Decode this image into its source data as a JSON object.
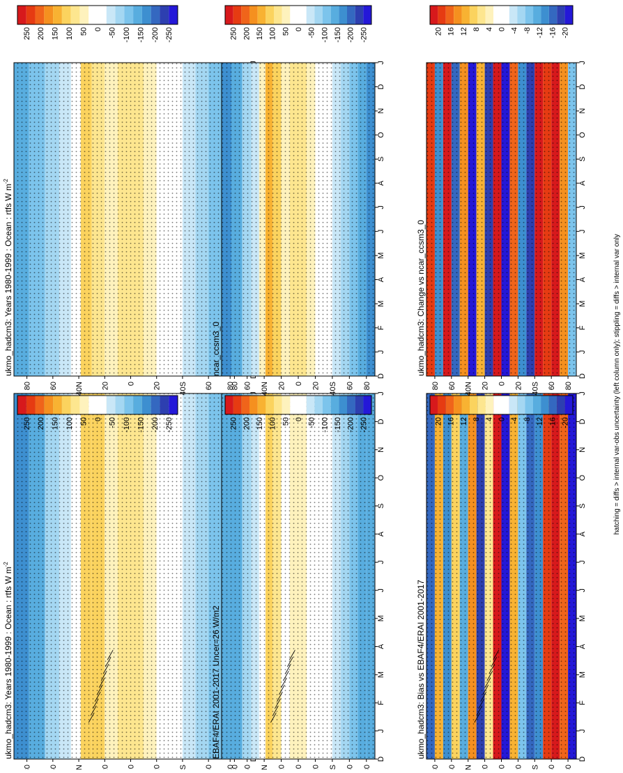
{
  "footnote": "hatching = diffs > internal var-obs uncertainty (left column only); stippling = diffs > internal var only",
  "chart_data": [
    {
      "id": "p1",
      "type": "heatmap",
      "title": "ukmo_hadcm3: Years 1980-1999 : Ocean : rtfs W m",
      "title_sup": "-2",
      "months": [
        "D",
        "J",
        "F",
        "M",
        "A",
        "M",
        "J",
        "J",
        "A",
        "S",
        "O",
        "N",
        "D",
        "J"
      ],
      "lat_ticks": [
        "80",
        "60",
        "40",
        "20",
        "0",
        "20",
        "40",
        "60",
        "80"
      ],
      "lat_hemis": [
        "",
        "",
        "N",
        "",
        "",
        "",
        "S",
        "",
        ""
      ],
      "colorbar": {
        "ticks": [
          "250",
          "200",
          "150",
          "100",
          "50",
          "0",
          "-50",
          "-100",
          "-150",
          "-200",
          "-250"
        ],
        "colors": [
          "#d7191c",
          "#e63b12",
          "#f0641a",
          "#f5901f",
          "#f8b232",
          "#fbd35e",
          "#fde68f",
          "#fef2bd",
          "#ffffff",
          "#ffffff",
          "#c9e7f7",
          "#a4d7f2",
          "#7cc4ec",
          "#58addf",
          "#3d8fd0",
          "#3468c0",
          "#2d3fb0",
          "#2418d8"
        ]
      },
      "bands": [
        {
          "lat": 85,
          "v": -140
        },
        {
          "lat": 72,
          "v": -125
        },
        {
          "lat": 60,
          "v": -70
        },
        {
          "lat": 50,
          "v": -40
        },
        {
          "lat": 42,
          "v": 20
        },
        {
          "lat": 35,
          "v": 110
        },
        {
          "lat": 25,
          "v": 90
        },
        {
          "lat": 15,
          "v": 40
        },
        {
          "lat": 5,
          "v": 70
        },
        {
          "lat": -5,
          "v": 70
        },
        {
          "lat": -15,
          "v": 30
        },
        {
          "lat": -25,
          "v": 0
        },
        {
          "lat": -35,
          "v": -15
        },
        {
          "lat": -45,
          "v": -40
        },
        {
          "lat": -55,
          "v": -75
        },
        {
          "lat": -65,
          "v": -95
        },
        {
          "lat": -75,
          "v": -125
        },
        {
          "lat": -85,
          "v": -135
        }
      ],
      "hatched": true
    },
    {
      "id": "p2",
      "type": "heatmap",
      "title": "ukmo_hadcm3: Years 1980-1999 : Ocean : rtfs W m",
      "title_sup": "-2",
      "months": [
        "D",
        "J",
        "F",
        "M",
        "A",
        "M",
        "J",
        "J",
        "A",
        "S",
        "O",
        "N",
        "D",
        "J"
      ],
      "lat_ticks": [
        "80",
        "60",
        "40",
        "20",
        "0",
        "20",
        "40",
        "60",
        "80"
      ],
      "lat_hemis": [
        "",
        "",
        "N",
        "",
        "",
        "",
        "S",
        "",
        ""
      ],
      "colorbar": {
        "ticks": [
          "250",
          "200",
          "150",
          "100",
          "50",
          "0",
          "-50",
          "-100",
          "-150",
          "-200",
          "-250"
        ],
        "colors": [
          "#d7191c",
          "#e63b12",
          "#f0641a",
          "#f5901f",
          "#f8b232",
          "#fbd35e",
          "#fde68f",
          "#fef2bd",
          "#ffffff",
          "#ffffff",
          "#c9e7f7",
          "#a4d7f2",
          "#7cc4ec",
          "#58addf",
          "#3d8fd0",
          "#3468c0",
          "#2d3fb0",
          "#2418d8"
        ]
      },
      "bands": [
        {
          "lat": 85,
          "v": -130
        },
        {
          "lat": 72,
          "v": -110
        },
        {
          "lat": 60,
          "v": -60
        },
        {
          "lat": 50,
          "v": -30
        },
        {
          "lat": 42,
          "v": 10
        },
        {
          "lat": 35,
          "v": 100
        },
        {
          "lat": 25,
          "v": 80
        },
        {
          "lat": 15,
          "v": 30
        },
        {
          "lat": 5,
          "v": 60
        },
        {
          "lat": -5,
          "v": 60
        },
        {
          "lat": -15,
          "v": 30
        },
        {
          "lat": -25,
          "v": 0
        },
        {
          "lat": -35,
          "v": -15
        },
        {
          "lat": -45,
          "v": -40
        },
        {
          "lat": -55,
          "v": -70
        },
        {
          "lat": -65,
          "v": -90
        },
        {
          "lat": -75,
          "v": -110
        },
        {
          "lat": -85,
          "v": -130
        }
      ],
      "hatched": false
    },
    {
      "id": "p3",
      "type": "heatmap",
      "title": "EBAF4/ERAI 2001-2017 Uncer=26 W/m2",
      "title_sup": "",
      "months": [
        "D",
        "J",
        "F",
        "M",
        "A",
        "M",
        "J",
        "J",
        "A",
        "S",
        "O",
        "N",
        "D",
        "J"
      ],
      "lat_ticks": [
        "80",
        "60",
        "40",
        "20",
        "0",
        "20",
        "40",
        "60",
        "80"
      ],
      "lat_hemis": [
        "",
        "",
        "N",
        "",
        "",
        "",
        "S",
        "",
        ""
      ],
      "colorbar": {
        "ticks": [
          "250",
          "200",
          "150",
          "100",
          "50",
          "0",
          "-50",
          "-100",
          "-150",
          "-200",
          "-250"
        ],
        "colors": [
          "#d7191c",
          "#e63b12",
          "#f0641a",
          "#f5901f",
          "#f8b232",
          "#fbd35e",
          "#fde68f",
          "#fef2bd",
          "#ffffff",
          "#ffffff",
          "#c9e7f7",
          "#a4d7f2",
          "#7cc4ec",
          "#58addf",
          "#3d8fd0",
          "#3468c0",
          "#2d3fb0",
          "#2418d8"
        ]
      },
      "bands": [
        {
          "lat": 85,
          "v": -130
        },
        {
          "lat": 72,
          "v": -115
        },
        {
          "lat": 60,
          "v": -75
        },
        {
          "lat": 50,
          "v": -40
        },
        {
          "lat": 42,
          "v": 10
        },
        {
          "lat": 35,
          "v": 95
        },
        {
          "lat": 25,
          "v": 80
        },
        {
          "lat": 15,
          "v": 25
        },
        {
          "lat": 5,
          "v": 55
        },
        {
          "lat": -5,
          "v": 55
        },
        {
          "lat": -15,
          "v": 25
        },
        {
          "lat": -25,
          "v": 0
        },
        {
          "lat": -35,
          "v": -20
        },
        {
          "lat": -45,
          "v": -45
        },
        {
          "lat": -55,
          "v": -75
        },
        {
          "lat": -65,
          "v": -95
        },
        {
          "lat": -75,
          "v": -115
        },
        {
          "lat": -85,
          "v": -130
        }
      ],
      "hatched": true
    },
    {
      "id": "p4",
      "type": "heatmap",
      "title": "ncar_ccsm3_0",
      "title_sup": "",
      "months": [
        "D",
        "J",
        "F",
        "M",
        "A",
        "M",
        "J",
        "J",
        "A",
        "S",
        "O",
        "N",
        "D",
        "J"
      ],
      "lat_ticks": [
        "80",
        "60",
        "40",
        "20",
        "0",
        "20",
        "40",
        "60",
        "80"
      ],
      "lat_hemis": [
        "",
        "",
        "N",
        "",
        "",
        "",
        "S",
        "",
        ""
      ],
      "colorbar": {
        "ticks": [
          "250",
          "200",
          "150",
          "100",
          "50",
          "0",
          "-50",
          "-100",
          "-150",
          "-200",
          "-250"
        ],
        "colors": [
          "#d7191c",
          "#e63b12",
          "#f0641a",
          "#f5901f",
          "#f8b232",
          "#fbd35e",
          "#fde68f",
          "#fef2bd",
          "#ffffff",
          "#ffffff",
          "#c9e7f7",
          "#a4d7f2",
          "#7cc4ec",
          "#58addf",
          "#3d8fd0",
          "#3468c0",
          "#2d3fb0",
          "#2418d8"
        ]
      },
      "bands": [
        {
          "lat": 85,
          "v": -140
        },
        {
          "lat": 72,
          "v": -120
        },
        {
          "lat": 60,
          "v": -75
        },
        {
          "lat": 50,
          "v": -30
        },
        {
          "lat": 42,
          "v": 40
        },
        {
          "lat": 35,
          "v": 120
        },
        {
          "lat": 25,
          "v": 100
        },
        {
          "lat": 15,
          "v": 50
        },
        {
          "lat": 5,
          "v": 75
        },
        {
          "lat": -5,
          "v": 75
        },
        {
          "lat": -15,
          "v": 40
        },
        {
          "lat": -25,
          "v": 5
        },
        {
          "lat": -35,
          "v": -20
        },
        {
          "lat": -45,
          "v": -45
        },
        {
          "lat": -55,
          "v": -80
        },
        {
          "lat": -65,
          "v": -105
        },
        {
          "lat": -75,
          "v": -130
        },
        {
          "lat": -85,
          "v": -140
        }
      ],
      "hatched": false
    },
    {
      "id": "p5",
      "type": "heatmap",
      "title": "ukmo_hadcm3: Bias vs EBAF4/ERAI 2001-2017",
      "title_sup": "",
      "months": [
        "D",
        "J",
        "F",
        "M",
        "A",
        "M",
        "J",
        "J",
        "A",
        "S",
        "O",
        "N",
        "D",
        "J"
      ],
      "lat_ticks": [
        "80",
        "60",
        "40",
        "20",
        "0",
        "20",
        "40",
        "60",
        "80"
      ],
      "lat_hemis": [
        "",
        "",
        "N",
        "",
        "",
        "",
        "S",
        "",
        ""
      ],
      "colorbar": {
        "ticks": [
          "20",
          "16",
          "12",
          "8",
          "4",
          "0",
          "-4",
          "-8",
          "-12",
          "-16",
          "-20"
        ],
        "colors": [
          "#d7191c",
          "#e63b12",
          "#f0641a",
          "#f5901f",
          "#f8b232",
          "#fbd35e",
          "#fde68f",
          "#fef2bd",
          "#ffffff",
          "#ffffff",
          "#c9e7f7",
          "#a4d7f2",
          "#7cc4ec",
          "#58addf",
          "#3d8fd0",
          "#3468c0",
          "#2d3fb0",
          "#2418d8"
        ]
      },
      "bands": [
        {
          "lat": 85,
          "v": -14
        },
        {
          "lat": 75,
          "v": 10
        },
        {
          "lat": 65,
          "v": -12
        },
        {
          "lat": 55,
          "v": 8
        },
        {
          "lat": 45,
          "v": -10
        },
        {
          "lat": 35,
          "v": 12
        },
        {
          "lat": 25,
          "v": -16
        },
        {
          "lat": 15,
          "v": 6
        },
        {
          "lat": 5,
          "v": 18
        },
        {
          "lat": -5,
          "v": -18
        },
        {
          "lat": -15,
          "v": 10
        },
        {
          "lat": -25,
          "v": -8
        },
        {
          "lat": -35,
          "v": -14
        },
        {
          "lat": -45,
          "v": -12
        },
        {
          "lat": -55,
          "v": 16
        },
        {
          "lat": -65,
          "v": 20
        },
        {
          "lat": -75,
          "v": 14
        },
        {
          "lat": -85,
          "v": -20
        }
      ],
      "hatched": true
    },
    {
      "id": "p6",
      "type": "heatmap",
      "title": "ukmo_hadcm3: Change vs ncar_ccsm3_0",
      "title_sup": "",
      "months": [
        "D",
        "J",
        "F",
        "M",
        "A",
        "M",
        "J",
        "J",
        "A",
        "S",
        "O",
        "N",
        "D",
        "J"
      ],
      "lat_ticks": [
        "80",
        "60",
        "40",
        "20",
        "0",
        "20",
        "40",
        "60",
        "80"
      ],
      "lat_hemis": [
        "",
        "",
        "N",
        "",
        "",
        "",
        "S",
        "",
        ""
      ],
      "colorbar": {
        "ticks": [
          "20",
          "16",
          "12",
          "8",
          "4",
          "0",
          "-4",
          "-8",
          "-12",
          "-16",
          "-20"
        ],
        "colors": [
          "#d7191c",
          "#e63b12",
          "#f0641a",
          "#f5901f",
          "#f8b232",
          "#fbd35e",
          "#fde68f",
          "#fef2bd",
          "#ffffff",
          "#ffffff",
          "#c9e7f7",
          "#a4d7f2",
          "#7cc4ec",
          "#58addf",
          "#3d8fd0",
          "#3468c0",
          "#2d3fb0",
          "#2418d8"
        ]
      },
      "bands": [
        {
          "lat": 85,
          "v": 16
        },
        {
          "lat": 75,
          "v": -12
        },
        {
          "lat": 65,
          "v": 18
        },
        {
          "lat": 55,
          "v": -14
        },
        {
          "lat": 45,
          "v": 12
        },
        {
          "lat": 35,
          "v": -18
        },
        {
          "lat": 25,
          "v": 10
        },
        {
          "lat": 15,
          "v": -16
        },
        {
          "lat": 5,
          "v": 20
        },
        {
          "lat": -5,
          "v": -20
        },
        {
          "lat": -15,
          "v": 14
        },
        {
          "lat": -25,
          "v": -12
        },
        {
          "lat": -35,
          "v": -16
        },
        {
          "lat": -45,
          "v": 18
        },
        {
          "lat": -55,
          "v": 16
        },
        {
          "lat": -65,
          "v": 18
        },
        {
          "lat": -75,
          "v": 12
        },
        {
          "lat": -85,
          "v": -8
        }
      ],
      "hatched": false
    }
  ]
}
